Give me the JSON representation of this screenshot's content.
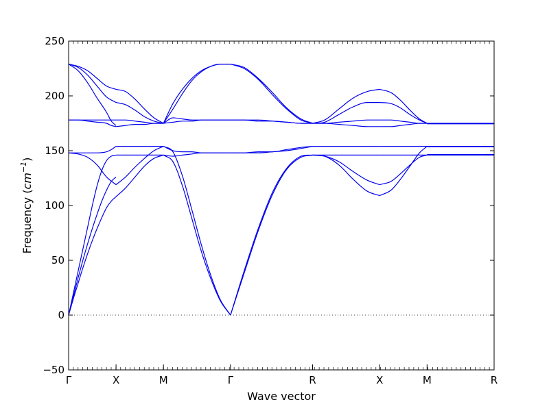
{
  "chart_data": {
    "type": "line",
    "title": "",
    "xlabel": "Wave vector",
    "ylabel": "Frequency (cm⁻¹)",
    "ylabel_parts": {
      "prefix": "Frequency (",
      "unit": "cm",
      "exponent": "−1",
      "suffix": ")"
    },
    "ylim": [
      -50,
      250
    ],
    "yticks": [
      -50,
      0,
      50,
      100,
      150,
      200,
      250
    ],
    "ytick_labels": [
      "−50",
      "0",
      "50",
      "100",
      "150",
      "200",
      "250"
    ],
    "q_points": [
      {
        "label": "Γ",
        "x": 0.0
      },
      {
        "label": "X",
        "x": 0.5
      },
      {
        "label": "M",
        "x": 1.0
      },
      {
        "label": "Γ",
        "x": 1.707
      },
      {
        "label": "R",
        "x": 2.573
      },
      {
        "label": "X",
        "x": 3.28
      },
      {
        "label": "M",
        "x": 3.78
      },
      {
        "label": "R",
        "x": 4.487
      }
    ],
    "xlim": [
      0,
      4.487
    ],
    "zero_line": {
      "y": 0,
      "style": "dotted"
    },
    "grid": false,
    "legend": "none",
    "line_color": "#0000ee",
    "series": [
      {
        "x": [
          0,
          0.05,
          0.1,
          0.15,
          0.2,
          0.25,
          0.3,
          0.35,
          0.4,
          0.45,
          0.5
        ],
        "y": [
          0,
          15,
          29,
          43,
          56,
          68,
          79,
          89,
          98,
          104,
          108
        ]
      },
      {
        "x": [
          0,
          0.05,
          0.1,
          0.15,
          0.2,
          0.25,
          0.3,
          0.35,
          0.4,
          0.45,
          0.5
        ],
        "y": [
          0,
          17,
          34,
          50,
          65,
          79,
          92,
          104,
          114,
          122,
          126
        ]
      },
      {
        "x": [
          0,
          0.05,
          0.1,
          0.15,
          0.2,
          0.25,
          0.3,
          0.35,
          0.4,
          0.45,
          0.5
        ],
        "y": [
          0,
          20,
          40,
          60,
          80,
          100,
          118,
          132,
          141,
          145,
          146
        ]
      },
      {
        "x": [
          0,
          0.1,
          0.2,
          0.3,
          0.4,
          0.5
        ],
        "y": [
          148,
          147,
          144,
          137,
          126,
          119
        ]
      },
      {
        "x": [
          0,
          0.1,
          0.2,
          0.3,
          0.4,
          0.45,
          0.5
        ],
        "y": [
          148,
          148,
          148,
          148,
          149,
          151,
          154
        ]
      },
      {
        "x": [
          0,
          0.1,
          0.2,
          0.3,
          0.4,
          0.5
        ],
        "y": [
          178,
          178,
          178,
          178,
          178,
          178
        ]
      },
      {
        "x": [
          0,
          0.1,
          0.2,
          0.3,
          0.4,
          0.45,
          0.5
        ],
        "y": [
          178,
          178,
          177,
          176,
          175,
          173,
          172
        ]
      },
      {
        "x": [
          0,
          0.1,
          0.2,
          0.3,
          0.4,
          0.5
        ],
        "y": [
          229,
          226,
          219,
          209,
          199,
          194
        ]
      },
      {
        "x": [
          0,
          0.1,
          0.2,
          0.3,
          0.4,
          0.5
        ],
        "y": [
          229,
          227,
          223,
          216,
          209,
          206
        ]
      },
      {
        "x": [
          0,
          0.1,
          0.2,
          0.3,
          0.4,
          0.45,
          0.5
        ],
        "y": [
          229,
          223,
          212,
          198,
          185,
          177,
          173
        ]
      },
      {
        "x": [
          0.5,
          0.6,
          0.7,
          0.8,
          0.9,
          1.0
        ],
        "y": [
          108,
          116,
          126,
          136,
          143,
          146
        ]
      },
      {
        "x": [
          0.5,
          0.6,
          0.7,
          0.8,
          0.9,
          1.0
        ],
        "y": [
          119,
          126,
          135,
          143,
          150,
          154
        ]
      },
      {
        "x": [
          0.5,
          0.6,
          0.7,
          0.8,
          0.9,
          1.0
        ],
        "y": [
          146,
          146,
          146,
          146,
          146,
          146
        ]
      },
      {
        "x": [
          0.5,
          0.6,
          0.7,
          0.8,
          0.9,
          1.0
        ],
        "y": [
          154,
          154,
          154,
          154,
          154,
          154
        ]
      },
      {
        "x": [
          0.5,
          0.6,
          0.7,
          0.8,
          0.9,
          1.0
        ],
        "y": [
          194,
          192,
          187,
          181,
          177,
          175
        ]
      },
      {
        "x": [
          0.5,
          0.6,
          0.7,
          0.8,
          0.9,
          1.0
        ],
        "y": [
          206,
          204,
          197,
          188,
          180,
          175
        ]
      },
      {
        "x": [
          0.5,
          0.6,
          0.7,
          0.8,
          0.9,
          1.0
        ],
        "y": [
          178,
          178,
          177,
          176,
          175,
          175
        ]
      },
      {
        "x": [
          0.5,
          0.6,
          0.7,
          0.8,
          0.9,
          1.0
        ],
        "y": [
          172,
          173,
          174,
          174,
          175,
          175
        ]
      },
      {
        "x": [
          1.0,
          1.1,
          1.2,
          1.3,
          1.4,
          1.5,
          1.6,
          1.707
        ],
        "y": [
          146,
          140,
          118,
          88,
          58,
          33,
          13,
          0
        ]
      },
      {
        "x": [
          1.0,
          1.1,
          1.2,
          1.3,
          1.4,
          1.5,
          1.6,
          1.707
        ],
        "y": [
          154,
          149,
          127,
          96,
          64,
          36,
          14,
          0
        ]
      },
      {
        "x": [
          1.0,
          1.1,
          1.2,
          1.3,
          1.4,
          1.5,
          1.6,
          1.707
        ],
        "y": [
          146,
          145,
          146,
          147,
          148,
          148,
          148,
          148
        ]
      },
      {
        "x": [
          1.0,
          1.1,
          1.2,
          1.3,
          1.4,
          1.5,
          1.6,
          1.707
        ],
        "y": [
          154,
          150,
          149,
          149,
          148,
          148,
          148,
          148
        ]
      },
      {
        "x": [
          1.0,
          1.1,
          1.2,
          1.3,
          1.4,
          1.5,
          1.6,
          1.707
        ],
        "y": [
          175,
          180,
          179,
          178,
          178,
          178,
          178,
          178
        ]
      },
      {
        "x": [
          1.0,
          1.1,
          1.2,
          1.3,
          1.4,
          1.5,
          1.6,
          1.707
        ],
        "y": [
          175,
          176,
          177,
          177,
          178,
          178,
          178,
          178
        ]
      },
      {
        "x": [
          1.0,
          1.1,
          1.2,
          1.3,
          1.4,
          1.5,
          1.6,
          1.707
        ],
        "y": [
          175,
          188,
          202,
          214,
          222,
          227,
          229,
          229
        ]
      },
      {
        "x": [
          1.0,
          1.1,
          1.2,
          1.3,
          1.4,
          1.5,
          1.6,
          1.707
        ],
        "y": [
          175,
          193,
          206,
          216,
          223,
          227,
          229,
          229
        ]
      },
      {
        "x": [
          1.707,
          1.85,
          2.0,
          2.15,
          2.3,
          2.45,
          2.573
        ],
        "y": [
          0,
          38,
          77,
          110,
          133,
          144,
          146
        ]
      },
      {
        "x": [
          1.707,
          1.85,
          2.0,
          2.15,
          2.3,
          2.45,
          2.573
        ],
        "y": [
          0,
          40,
          79,
          112,
          134,
          145,
          146
        ]
      },
      {
        "x": [
          1.707,
          1.85,
          2.0,
          2.15,
          2.3,
          2.45,
          2.573
        ],
        "y": [
          148,
          148,
          148,
          149,
          150,
          152,
          154
        ]
      },
      {
        "x": [
          1.707,
          1.85,
          2.0,
          2.15,
          2.3,
          2.45,
          2.573
        ],
        "y": [
          148,
          148,
          149,
          149,
          151,
          153,
          154
        ]
      },
      {
        "x": [
          1.707,
          1.85,
          2.0,
          2.15,
          2.3,
          2.45,
          2.573
        ],
        "y": [
          178,
          178,
          177,
          177,
          176,
          175,
          175
        ]
      },
      {
        "x": [
          1.707,
          1.85,
          2.0,
          2.15,
          2.3,
          2.45,
          2.573
        ],
        "y": [
          178,
          178,
          178,
          177,
          176,
          175,
          175
        ]
      },
      {
        "x": [
          1.707,
          1.85,
          2.0,
          2.15,
          2.3,
          2.45,
          2.573
        ],
        "y": [
          229,
          226,
          216,
          203,
          189,
          179,
          175
        ]
      },
      {
        "x": [
          1.707,
          1.85,
          2.0,
          2.15,
          2.3,
          2.45,
          2.573
        ],
        "y": [
          229,
          225,
          215,
          201,
          188,
          178,
          175
        ]
      },
      {
        "x": [
          2.573,
          2.7,
          2.85,
          3.0,
          3.15,
          3.28
        ],
        "y": [
          146,
          145,
          137,
          124,
          113,
          109
        ]
      },
      {
        "x": [
          2.573,
          2.7,
          2.85,
          3.0,
          3.15,
          3.28
        ],
        "y": [
          146,
          145,
          140,
          131,
          123,
          119
        ]
      },
      {
        "x": [
          2.573,
          2.7,
          2.85,
          3.0,
          3.15,
          3.28
        ],
        "y": [
          146,
          146,
          146,
          146,
          146,
          146
        ]
      },
      {
        "x": [
          2.573,
          2.7,
          2.85,
          3.0,
          3.15,
          3.28
        ],
        "y": [
          154,
          154,
          154,
          154,
          154,
          154
        ]
      },
      {
        "x": [
          2.573,
          2.7,
          2.85,
          3.0,
          3.15,
          3.28
        ],
        "y": [
          175,
          176,
          183,
          190,
          194,
          194
        ]
      },
      {
        "x": [
          2.573,
          2.7,
          2.85,
          3.0,
          3.15,
          3.28
        ],
        "y": [
          175,
          178,
          188,
          198,
          204,
          206
        ]
      },
      {
        "x": [
          2.573,
          2.7,
          2.85,
          3.0,
          3.15,
          3.28
        ],
        "y": [
          175,
          175,
          176,
          177,
          178,
          178
        ]
      },
      {
        "x": [
          2.573,
          2.7,
          2.85,
          3.0,
          3.15,
          3.28
        ],
        "y": [
          175,
          175,
          174,
          173,
          172,
          172
        ]
      },
      {
        "x": [
          3.28,
          3.4,
          3.5,
          3.6,
          3.7,
          3.78
        ],
        "y": [
          109,
          114,
          124,
          136,
          148,
          154
        ]
      },
      {
        "x": [
          3.28,
          3.4,
          3.5,
          3.6,
          3.7,
          3.78
        ],
        "y": [
          119,
          122,
          129,
          137,
          144,
          146
        ]
      },
      {
        "x": [
          3.28,
          3.4,
          3.5,
          3.6,
          3.7,
          3.78
        ],
        "y": [
          146,
          146,
          146,
          146,
          146,
          146
        ]
      },
      {
        "x": [
          3.28,
          3.4,
          3.5,
          3.6,
          3.7,
          3.78
        ],
        "y": [
          154,
          154,
          154,
          154,
          154,
          154
        ]
      },
      {
        "x": [
          3.28,
          3.4,
          3.5,
          3.6,
          3.7,
          3.78
        ],
        "y": [
          194,
          193,
          189,
          183,
          178,
          175
        ]
      },
      {
        "x": [
          3.28,
          3.4,
          3.5,
          3.6,
          3.7,
          3.78
        ],
        "y": [
          206,
          203,
          196,
          187,
          179,
          175
        ]
      },
      {
        "x": [
          3.28,
          3.4,
          3.5,
          3.6,
          3.7,
          3.78
        ],
        "y": [
          178,
          178,
          177,
          176,
          175,
          175
        ]
      },
      {
        "x": [
          3.28,
          3.4,
          3.5,
          3.6,
          3.7,
          3.78
        ],
        "y": [
          172,
          172,
          173,
          174,
          175,
          175
        ]
      },
      {
        "x": [
          3.78,
          4.487
        ],
        "y": [
          146,
          146
        ]
      },
      {
        "x": [
          3.78,
          4.487
        ],
        "y": [
          146.5,
          146.5
        ]
      },
      {
        "x": [
          3.78,
          4.487
        ],
        "y": [
          153.5,
          153.5
        ]
      },
      {
        "x": [
          3.78,
          4.487
        ],
        "y": [
          154,
          154
        ]
      },
      {
        "x": [
          3.78,
          4.487
        ],
        "y": [
          174.5,
          174.5
        ]
      },
      {
        "x": [
          3.78,
          4.487
        ],
        "y": [
          175,
          175
        ]
      }
    ]
  }
}
